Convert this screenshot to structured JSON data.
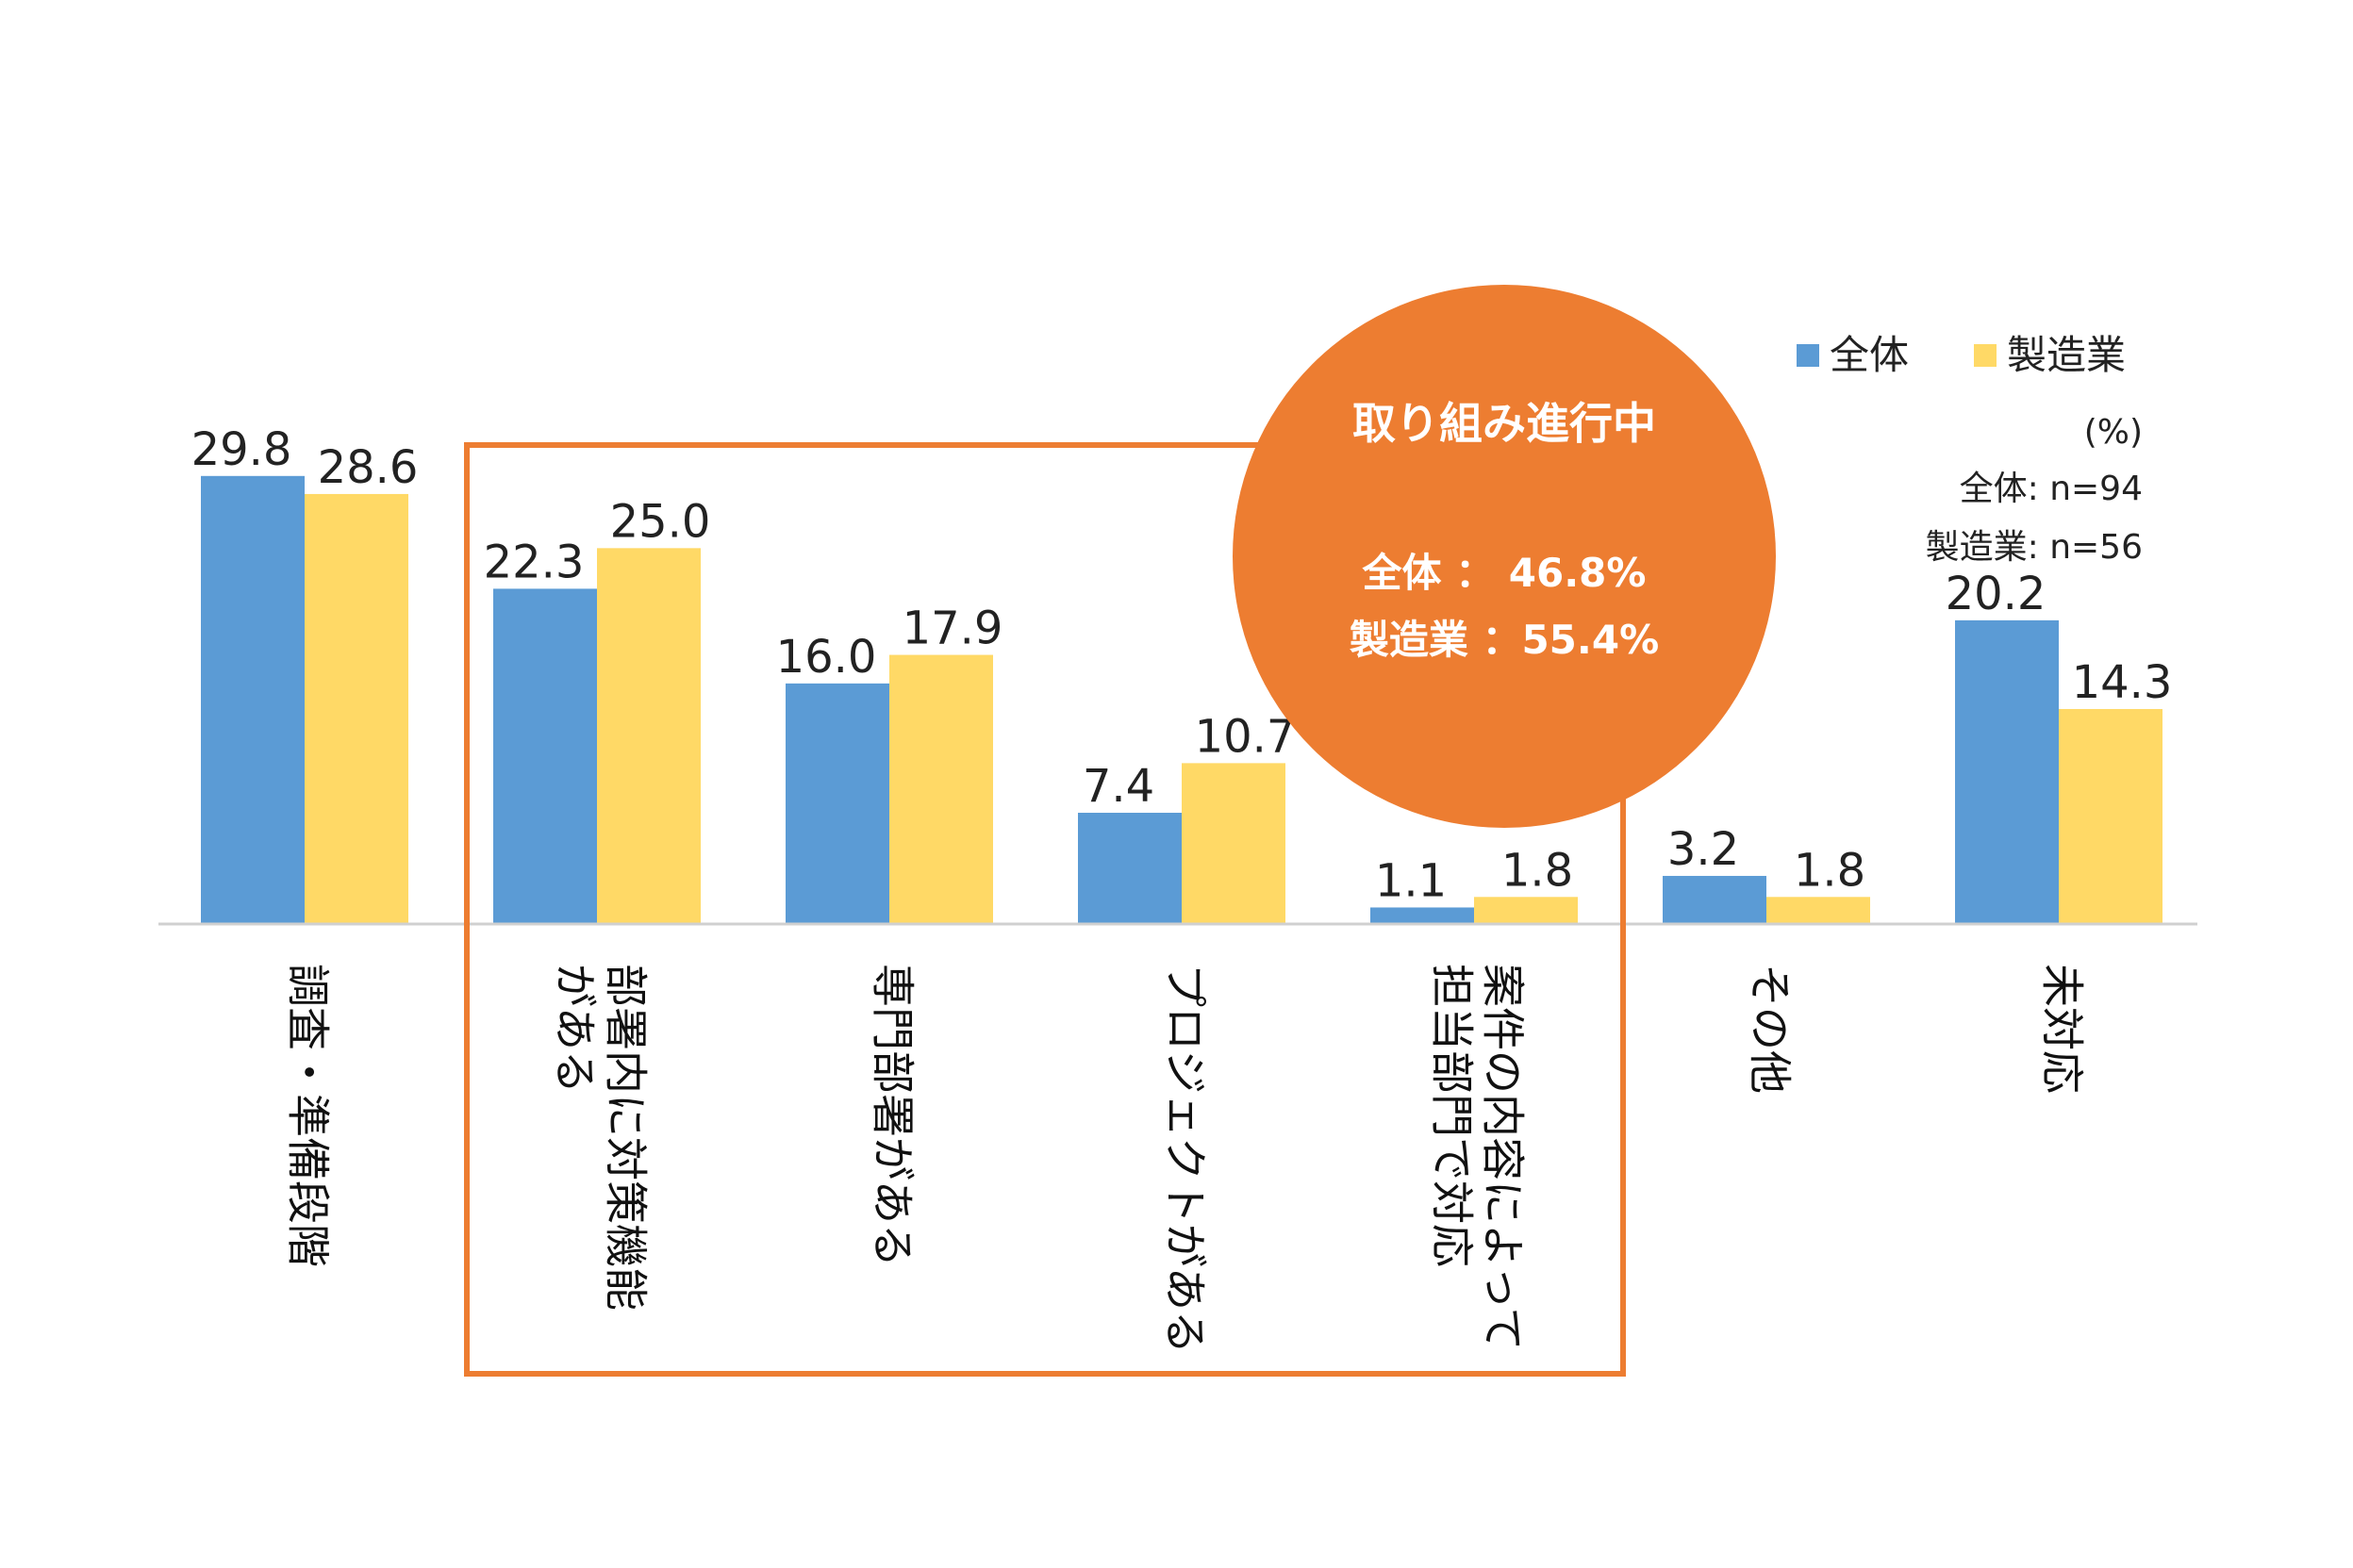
{
  "chart_data": {
    "type": "bar",
    "title": "",
    "xlabel": "",
    "ylabel": "",
    "ylim": [
      0,
      37
    ],
    "grid": false,
    "legend": "top-right",
    "categories": [
      "調査・準備段階",
      "部署内に対策機能がある",
      "専門部署がある",
      "プロジェクトがある",
      "案件の内容によって担当部門で対応",
      "その他",
      "未対応"
    ],
    "category_lines": [
      [
        "調査・準備段階"
      ],
      [
        "部署内に対策機能",
        "がある"
      ],
      [
        "専門部署がある"
      ],
      [
        "プロジェクトがある"
      ],
      [
        "案件の内容によって",
        "担当部門で対応"
      ],
      [
        "その他"
      ],
      [
        "未対応"
      ]
    ],
    "series": [
      {
        "name": "全体",
        "color": "#5B9BD5",
        "values": [
          29.8,
          22.3,
          16.0,
          7.4,
          1.1,
          3.2,
          20.2
        ],
        "labels": [
          "29.8",
          "22.3",
          "16.0",
          "7.4",
          "1.1",
          "3.2",
          "20.2"
        ]
      },
      {
        "name": "製造業",
        "color": "#FFD966",
        "values": [
          28.6,
          25.0,
          17.9,
          10.7,
          1.8,
          1.8,
          14.3
        ],
        "labels": [
          "28.6",
          "25.0",
          "17.9",
          "10.7",
          "1.8",
          "1.8",
          "14.3"
        ]
      }
    ],
    "unit_note": "(%)",
    "sample_notes": [
      "全体: n=94",
      "製造業: n=56"
    ],
    "highlight": {
      "from_category": 1,
      "to_category": 4,
      "color": "#ED7D31",
      "callout_title": "取り組み進行中",
      "callout_lines": [
        "全体 ： 46.8%",
        "製造業 ：55.4%"
      ]
    }
  }
}
